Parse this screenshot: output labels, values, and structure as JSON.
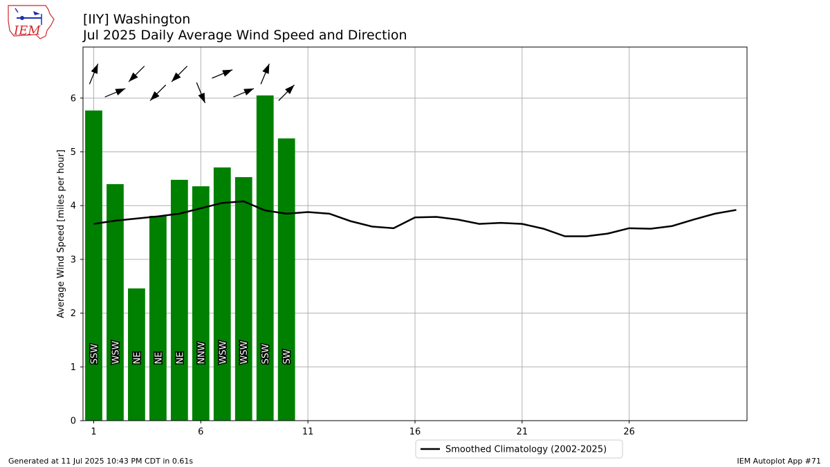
{
  "header": {
    "title_line1": "[IIY] Washington",
    "title_line2": "Jul 2025 Daily Average Wind Speed and Direction"
  },
  "logo": {
    "text": "IEM"
  },
  "footer": {
    "generated": "Generated at 11 Jul 2025 10:43 PM CDT in 0.61s",
    "app": "IEM Autoplot App #71"
  },
  "colors": {
    "bar": "#008000",
    "climo": "#000000",
    "grid": "#b0b0b0",
    "logo_red": "#d0262f",
    "logo_blue": "#1f2fb0"
  },
  "chart_data": {
    "type": "bar",
    "ylabel": "Average Wind Speed [miles per hour]",
    "xlim": [
      0.5,
      31.5
    ],
    "ylim": [
      0,
      6.95
    ],
    "x_ticks": [
      1,
      6,
      11,
      16,
      21,
      26
    ],
    "y_ticks": [
      0,
      1,
      2,
      3,
      4,
      5,
      6
    ],
    "grid": true,
    "legend_position": "bottom-center",
    "bars": {
      "days": [
        1,
        2,
        3,
        4,
        5,
        6,
        7,
        8,
        9,
        10
      ],
      "values": [
        5.77,
        4.4,
        2.46,
        3.81,
        4.48,
        4.36,
        4.71,
        4.53,
        6.05,
        5.25
      ],
      "directions": [
        "SSW",
        "WSW",
        "NE",
        "NE",
        "NE",
        "NNW",
        "WSW",
        "WSW",
        "SSW",
        "SW"
      ]
    },
    "series": [
      {
        "name": "Smoothed Climatology (2002-2025)",
        "x": [
          1,
          2,
          3,
          4,
          5,
          6,
          7,
          8,
          9,
          10,
          11,
          12,
          13,
          14,
          15,
          16,
          17,
          18,
          19,
          20,
          21,
          22,
          23,
          24,
          25,
          26,
          27,
          28,
          29,
          30,
          31
        ],
        "values": [
          3.66,
          3.72,
          3.76,
          3.8,
          3.85,
          3.95,
          4.05,
          4.08,
          3.91,
          3.85,
          3.88,
          3.85,
          3.71,
          3.61,
          3.58,
          3.78,
          3.79,
          3.74,
          3.66,
          3.68,
          3.66,
          3.57,
          3.43,
          3.43,
          3.48,
          3.58,
          3.57,
          3.62,
          3.74,
          3.85,
          3.92
        ]
      }
    ]
  }
}
